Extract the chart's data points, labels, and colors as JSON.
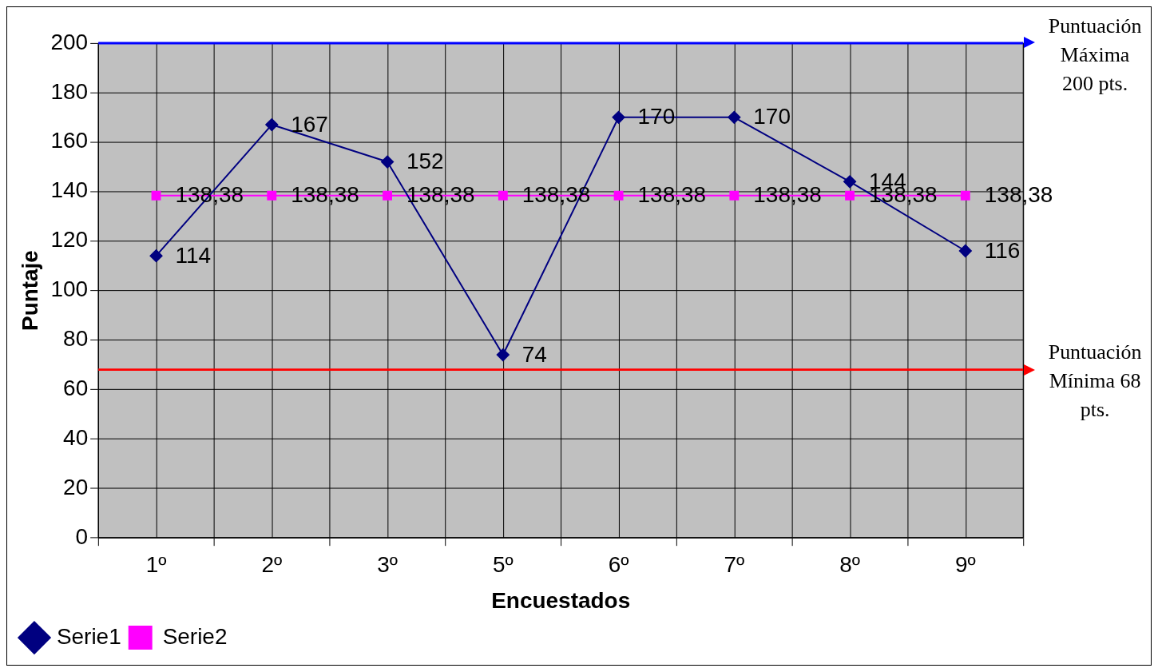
{
  "chart_data": {
    "type": "line",
    "xlabel": "Encuestados",
    "ylabel": "Puntaje",
    "categories": [
      "1º",
      "2º",
      "3º",
      "5º",
      "6º",
      "7º",
      "8º",
      "9º"
    ],
    "series": [
      {
        "name": "Serie1",
        "color": "#000080",
        "marker": "diamond",
        "values": [
          114,
          167,
          152,
          74,
          170,
          170,
          144,
          116
        ],
        "value_labels": [
          "114",
          "167",
          "152",
          "74",
          "170",
          "170",
          "144",
          "116"
        ]
      },
      {
        "name": "Serie2",
        "color": "#ff00ff",
        "marker": "square",
        "values": [
          138.38,
          138.38,
          138.38,
          138.38,
          138.38,
          138.38,
          138.38,
          138.38
        ],
        "value_labels": [
          "138,38",
          "138,38",
          "138,38",
          "138,38",
          "138,38",
          "138,38",
          "138,38",
          "138,38"
        ]
      }
    ],
    "ylim": [
      0,
      200
    ],
    "yticks": [
      0,
      20,
      40,
      60,
      80,
      100,
      120,
      140,
      160,
      180,
      200
    ],
    "ref_lines": [
      {
        "axis": "y",
        "value": 200,
        "label": "Puntuación Máxima 200 pts.",
        "color": "#0000ff"
      },
      {
        "axis": "y",
        "value": 68,
        "label": "Puntuación Mínima 68 pts.",
        "color": "#ff0000"
      }
    ],
    "grid": true,
    "legend": "bottom left",
    "line_style": "solid"
  }
}
